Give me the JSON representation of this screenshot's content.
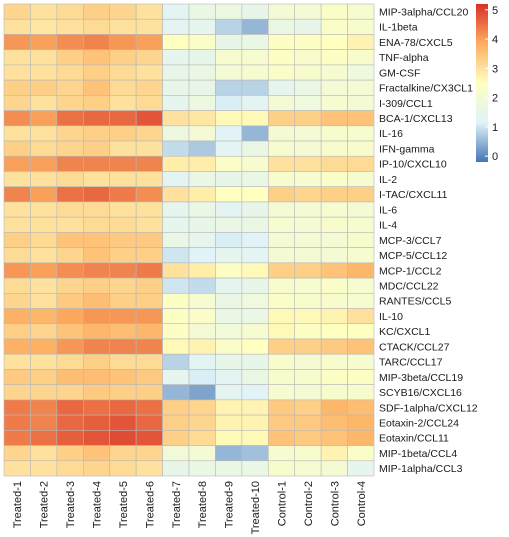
{
  "chart_data": {
    "type": "heatmap",
    "rows": [
      "MIP-3alpha/CCL20",
      "IL-1beta",
      "ENA-78/CXCL5",
      "TNF-alpha",
      "GM-CSF",
      "Fractalkine/CX3CL1",
      "I-309/CCL1",
      "BCA-1/CXCL13",
      "IL-16",
      "IFN-gamma",
      "IP-10/CXCL10",
      "IL-2",
      "I-TAC/CXCL11",
      "IL-6",
      "IL-4",
      "MCP-3/CCL7",
      "MCP-5/CCL12",
      "MCP-1/CCL2",
      "MDC/CCL22",
      "RANTES/CCL5",
      "IL-10",
      "KC/CXCL1",
      "CTACK/CCL27",
      "TARC/CCL17",
      "MIP-3beta/CCL19",
      "SCYB16/CXCL16",
      "SDF-1alpha/CXCL12",
      "Eotaxin-2/CCL24",
      "Eotaxin/CCL11",
      "MIP-1beta/CCL4",
      "MIP-1alpha/CCL3"
    ],
    "columns": [
      "Treated-1",
      "Treated-2",
      "Treated-3",
      "Treated-4",
      "Treated-5",
      "Treated-6",
      "Treated-7",
      "Treated-8",
      "Treated-9",
      "Treated-10",
      "Control-1",
      "Control-2",
      "Control-3",
      "Control-4"
    ],
    "values": [
      [
        3.2,
        3.0,
        3.1,
        3.3,
        3.2,
        3.0,
        1.3,
        1.6,
        1.7,
        1.5,
        2.0,
        2.0,
        2.3,
        2.1
      ],
      [
        3.0,
        2.9,
        3.0,
        3.1,
        3.0,
        3.0,
        1.3,
        1.4,
        0.8,
        0.5,
        1.6,
        1.5,
        2.3,
        2.2
      ],
      [
        4.1,
        4.0,
        4.2,
        4.3,
        4.1,
        4.0,
        2.5,
        2.3,
        1.5,
        1.6,
        2.4,
        2.4,
        2.5,
        2.7
      ],
      [
        3.0,
        3.0,
        3.3,
        3.5,
        3.3,
        3.2,
        1.4,
        1.5,
        2.1,
        2.1,
        2.4,
        2.2,
        2.4,
        2.2
      ],
      [
        3.0,
        3.0,
        3.1,
        3.3,
        3.1,
        3.0,
        1.5,
        1.6,
        2.0,
        2.1,
        2.3,
        2.2,
        2.1,
        1.8
      ],
      [
        3.3,
        3.3,
        3.2,
        3.5,
        3.1,
        3.2,
        1.5,
        1.5,
        0.8,
        0.8,
        1.4,
        1.6,
        2.0,
        2.0
      ],
      [
        3.2,
        3.0,
        3.2,
        3.3,
        3.0,
        3.1,
        1.4,
        1.7,
        1.1,
        1.3,
        2.0,
        1.8,
        2.1,
        2.0
      ],
      [
        4.2,
        4.0,
        4.5,
        4.6,
        4.6,
        4.8,
        3.0,
        2.9,
        2.6,
        2.6,
        3.3,
        3.3,
        3.5,
        3.5
      ],
      [
        3.0,
        3.0,
        3.2,
        3.3,
        3.3,
        3.2,
        1.7,
        2.0,
        1.2,
        0.5,
        2.0,
        2.0,
        2.2,
        2.1
      ],
      [
        3.3,
        3.1,
        3.2,
        3.3,
        3.0,
        3.0,
        0.9,
        0.7,
        1.3,
        1.6,
        2.1,
        2.0,
        2.2,
        2.2
      ],
      [
        4.0,
        4.0,
        4.3,
        4.3,
        4.3,
        4.3,
        2.8,
        2.8,
        2.3,
        2.1,
        3.0,
        3.0,
        3.1,
        3.1
      ],
      [
        3.0,
        3.0,
        3.1,
        3.0,
        3.0,
        3.0,
        1.3,
        1.6,
        1.5,
        1.6,
        2.2,
        2.1,
        2.3,
        2.1
      ],
      [
        4.3,
        4.0,
        4.5,
        4.6,
        4.4,
        4.2,
        3.0,
        2.8,
        2.5,
        2.5,
        3.3,
        3.2,
        3.3,
        3.3
      ],
      [
        3.0,
        3.0,
        3.1,
        3.1,
        3.0,
        3.0,
        1.4,
        1.6,
        1.3,
        1.5,
        2.0,
        2.0,
        2.1,
        2.0
      ],
      [
        3.0,
        3.0,
        3.0,
        3.1,
        3.1,
        3.0,
        1.4,
        1.5,
        1.6,
        1.6,
        2.1,
        2.0,
        2.2,
        2.1
      ],
      [
        3.3,
        3.1,
        3.5,
        3.5,
        3.4,
        3.4,
        1.6,
        1.4,
        1.1,
        1.2,
        2.0,
        2.0,
        2.0,
        2.2
      ],
      [
        3.1,
        3.0,
        3.2,
        3.5,
        3.3,
        3.3,
        1.0,
        1.2,
        1.4,
        1.3,
        2.0,
        2.0,
        2.0,
        2.1
      ],
      [
        4.1,
        4.0,
        4.2,
        4.3,
        4.3,
        4.4,
        3.0,
        2.8,
        2.4,
        2.6,
        3.3,
        3.3,
        3.5,
        3.7
      ],
      [
        3.1,
        3.0,
        3.2,
        3.3,
        3.2,
        3.3,
        1.0,
        0.9,
        1.4,
        1.5,
        2.2,
        2.1,
        2.3,
        2.1
      ],
      [
        3.2,
        3.0,
        3.4,
        3.6,
        3.3,
        3.3,
        2.4,
        2.1,
        1.6,
        1.8,
        2.3,
        2.2,
        2.2,
        2.1
      ],
      [
        3.8,
        3.7,
        3.9,
        4.1,
        4.1,
        4.1,
        2.4,
        2.3,
        1.6,
        1.6,
        2.6,
        2.6,
        2.7,
        3.0
      ],
      [
        3.3,
        3.2,
        3.5,
        3.7,
        3.6,
        3.7,
        2.4,
        2.0,
        1.9,
        2.1,
        2.6,
        2.4,
        2.5,
        2.5
      ],
      [
        3.8,
        3.8,
        4.1,
        4.3,
        4.3,
        4.3,
        2.6,
        2.7,
        2.3,
        2.5,
        3.3,
        3.3,
        3.4,
        3.5
      ],
      [
        3.0,
        3.0,
        3.1,
        3.3,
        3.1,
        3.1,
        0.8,
        1.3,
        1.5,
        1.5,
        2.2,
        2.0,
        2.2,
        2.1
      ],
      [
        3.4,
        3.3,
        3.6,
        3.6,
        3.5,
        3.4,
        1.4,
        1.1,
        1.3,
        1.6,
        2.2,
        2.2,
        2.4,
        2.4
      ],
      [
        3.2,
        3.2,
        3.2,
        3.4,
        3.3,
        3.3,
        0.5,
        0.3,
        1.3,
        1.2,
        2.1,
        2.0,
        2.2,
        2.2
      ],
      [
        4.4,
        4.3,
        4.6,
        4.5,
        4.6,
        4.5,
        3.3,
        3.2,
        2.7,
        2.7,
        3.4,
        3.3,
        3.7,
        3.6
      ],
      [
        4.4,
        4.3,
        4.6,
        4.7,
        4.8,
        4.6,
        3.3,
        3.2,
        2.7,
        2.7,
        3.4,
        3.4,
        3.6,
        3.7
      ],
      [
        4.4,
        4.5,
        4.7,
        4.8,
        4.9,
        4.8,
        3.3,
        3.1,
        2.6,
        2.6,
        3.5,
        3.4,
        3.5,
        3.7
      ],
      [
        3.2,
        3.0,
        3.3,
        3.5,
        3.2,
        3.2,
        1.9,
        2.0,
        0.5,
        0.6,
        2.1,
        2.2,
        2.7,
        2.3
      ],
      [
        3.0,
        3.0,
        3.1,
        3.2,
        3.1,
        3.0,
        1.5,
        1.6,
        1.6,
        1.6,
        2.2,
        2.1,
        2.0,
        1.4
      ]
    ],
    "zlim": [
      -0.2,
      5.2
    ],
    "colorbar": {
      "ticks": [
        0,
        1,
        2,
        3,
        4,
        5
      ],
      "tick_labels": [
        "0",
        "1",
        "2",
        "3",
        "4",
        "5"
      ],
      "placement": "top-right"
    },
    "colors": {
      "low": "#4575b4",
      "mid_low": "#e0f3f8",
      "mid": "#ffffbf",
      "mid_high": "#fdae61",
      "high": "#d73027"
    },
    "grid": true,
    "title": "",
    "xlabel": "",
    "ylabel": ""
  }
}
